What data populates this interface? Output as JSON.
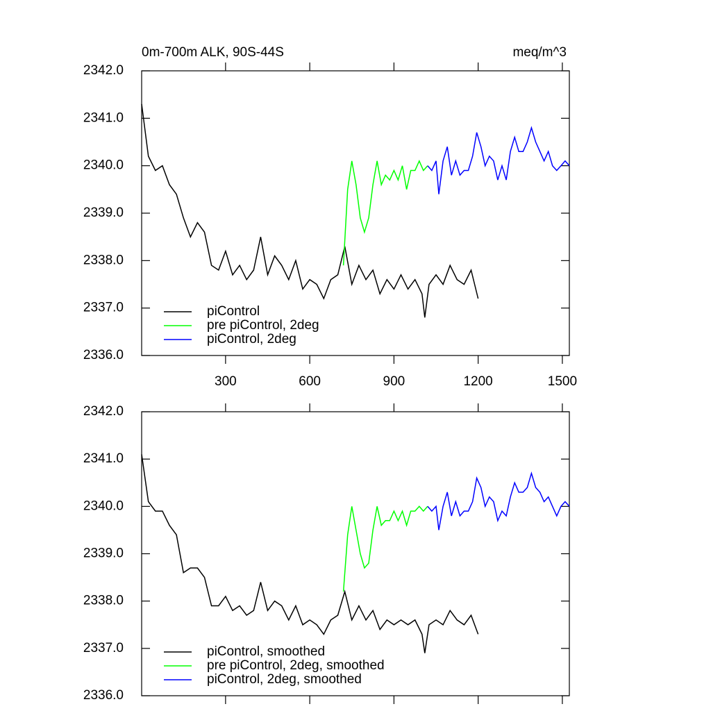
{
  "chart_data": [
    {
      "type": "line",
      "title": "0m-700m ALK, 90S-44S",
      "right_title": "meq/m^3",
      "xlim": [
        1,
        1525
      ],
      "ylim": [
        2336,
        2342
      ],
      "xticks": [
        300,
        600,
        900,
        1200,
        1500
      ],
      "yticks": [
        {
          "value": 2336,
          "label": "2336.0"
        },
        {
          "value": 2337,
          "label": "2337.0"
        },
        {
          "value": 2338,
          "label": "2338.0"
        },
        {
          "value": 2339,
          "label": "2339.0"
        },
        {
          "value": 2340,
          "label": "2340.0"
        },
        {
          "value": 2341,
          "label": "2341.0"
        },
        {
          "value": 2342,
          "label": "2342.0"
        }
      ],
      "show_xtick_labels": true,
      "legend": "lower left",
      "series": [
        {
          "name": "piControl",
          "color": "#000000",
          "x": [
            1,
            25,
            50,
            75,
            100,
            125,
            150,
            175,
            200,
            225,
            250,
            275,
            300,
            325,
            350,
            375,
            400,
            425,
            450,
            475,
            500,
            525,
            550,
            575,
            600,
            625,
            650,
            675,
            700,
            725,
            750,
            775,
            800,
            825,
            850,
            875,
            900,
            925,
            950,
            975,
            1000,
            1010,
            1025,
            1050,
            1075,
            1100,
            1125,
            1150,
            1175,
            1200
          ],
          "values": [
            2341.3,
            2340.2,
            2339.9,
            2340.0,
            2339.6,
            2339.4,
            2338.9,
            2338.5,
            2338.8,
            2338.6,
            2337.9,
            2337.8,
            2338.2,
            2337.7,
            2337.9,
            2337.6,
            2337.8,
            2338.5,
            2337.7,
            2338.1,
            2337.9,
            2337.6,
            2338.0,
            2337.4,
            2337.6,
            2337.5,
            2337.2,
            2337.6,
            2337.7,
            2338.3,
            2337.5,
            2337.9,
            2337.6,
            2337.8,
            2337.3,
            2337.6,
            2337.4,
            2337.7,
            2337.4,
            2337.6,
            2337.3,
            2336.8,
            2337.5,
            2337.7,
            2337.5,
            2337.9,
            2337.6,
            2337.5,
            2337.8,
            2337.2
          ]
        },
        {
          "name": "pre piControl, 2deg",
          "color": "#00ff00",
          "x": [
            720,
            735,
            750,
            765,
            780,
            795,
            810,
            825,
            840,
            855,
            870,
            885,
            900,
            915,
            930,
            945,
            960,
            975,
            990,
            1005,
            1020
          ],
          "values": [
            2337.9,
            2339.5,
            2340.1,
            2339.6,
            2338.9,
            2338.6,
            2338.9,
            2339.6,
            2340.1,
            2339.6,
            2339.8,
            2339.7,
            2339.9,
            2339.7,
            2340.0,
            2339.5,
            2339.9,
            2339.9,
            2340.1,
            2339.9,
            2340.0
          ]
        },
        {
          "name": "piControl, 2deg",
          "color": "#0000ff",
          "x": [
            1020,
            1035,
            1050,
            1060,
            1075,
            1090,
            1105,
            1120,
            1135,
            1150,
            1165,
            1180,
            1195,
            1210,
            1225,
            1240,
            1255,
            1270,
            1285,
            1300,
            1315,
            1330,
            1345,
            1360,
            1375,
            1390,
            1405,
            1420,
            1435,
            1450,
            1465,
            1480,
            1495,
            1510,
            1525
          ],
          "values": [
            2340.0,
            2339.9,
            2340.1,
            2339.4,
            2340.1,
            2340.4,
            2339.8,
            2340.1,
            2339.8,
            2339.9,
            2339.9,
            2340.2,
            2340.7,
            2340.4,
            2340.0,
            2340.2,
            2340.1,
            2339.7,
            2340.0,
            2339.7,
            2340.3,
            2340.6,
            2340.3,
            2340.3,
            2340.5,
            2340.8,
            2340.5,
            2340.3,
            2340.1,
            2340.3,
            2340.0,
            2339.9,
            2340.0,
            2340.1,
            2340.0
          ]
        }
      ]
    },
    {
      "type": "line",
      "xlim": [
        1,
        1525
      ],
      "ylim": [
        2336,
        2342
      ],
      "xticks": [
        300,
        600,
        900,
        1200,
        1500
      ],
      "yticks": [
        {
          "value": 2336,
          "label": "2336.0"
        },
        {
          "value": 2337,
          "label": "2337.0"
        },
        {
          "value": 2338,
          "label": "2338.0"
        },
        {
          "value": 2339,
          "label": "2339.0"
        },
        {
          "value": 2340,
          "label": "2340.0"
        },
        {
          "value": 2341,
          "label": "2341.0"
        },
        {
          "value": 2342,
          "label": "2342.0"
        }
      ],
      "show_xtick_labels": false,
      "legend": "lower left",
      "series": [
        {
          "name": "piControl, smoothed",
          "color": "#000000",
          "x": [
            1,
            25,
            50,
            75,
            100,
            125,
            150,
            175,
            200,
            225,
            250,
            275,
            300,
            325,
            350,
            375,
            400,
            425,
            450,
            475,
            500,
            525,
            550,
            575,
            600,
            625,
            650,
            675,
            700,
            725,
            750,
            775,
            800,
            825,
            850,
            875,
            900,
            925,
            950,
            975,
            1000,
            1010,
            1025,
            1050,
            1075,
            1100,
            1125,
            1150,
            1175,
            1200
          ],
          "values": [
            2341.1,
            2340.1,
            2339.9,
            2339.9,
            2339.6,
            2339.4,
            2338.6,
            2338.7,
            2338.7,
            2338.5,
            2337.9,
            2337.9,
            2338.1,
            2337.8,
            2337.9,
            2337.7,
            2337.8,
            2338.4,
            2337.8,
            2338.0,
            2337.9,
            2337.6,
            2337.9,
            2337.5,
            2337.6,
            2337.5,
            2337.3,
            2337.6,
            2337.7,
            2338.2,
            2337.6,
            2337.9,
            2337.6,
            2337.8,
            2337.4,
            2337.6,
            2337.5,
            2337.6,
            2337.5,
            2337.6,
            2337.3,
            2336.9,
            2337.5,
            2337.6,
            2337.5,
            2337.8,
            2337.6,
            2337.5,
            2337.7,
            2337.3
          ]
        },
        {
          "name": "pre piControl, 2deg, smoothed",
          "color": "#00ff00",
          "x": [
            720,
            735,
            750,
            765,
            780,
            795,
            810,
            825,
            840,
            855,
            870,
            885,
            900,
            915,
            930,
            945,
            960,
            975,
            990,
            1005,
            1020
          ],
          "values": [
            2338.2,
            2339.4,
            2340.0,
            2339.5,
            2339.0,
            2338.7,
            2338.8,
            2339.5,
            2340.0,
            2339.6,
            2339.7,
            2339.7,
            2339.9,
            2339.7,
            2339.9,
            2339.6,
            2339.9,
            2339.9,
            2340.0,
            2339.9,
            2340.0
          ]
        },
        {
          "name": "piControl, 2deg, smoothed",
          "color": "#0000ff",
          "x": [
            1020,
            1035,
            1050,
            1060,
            1075,
            1090,
            1105,
            1120,
            1135,
            1150,
            1165,
            1180,
            1195,
            1210,
            1225,
            1240,
            1255,
            1270,
            1285,
            1300,
            1315,
            1330,
            1345,
            1360,
            1375,
            1390,
            1405,
            1420,
            1435,
            1450,
            1465,
            1480,
            1495,
            1510,
            1525
          ],
          "values": [
            2340.0,
            2339.9,
            2340.0,
            2339.5,
            2340.0,
            2340.3,
            2339.8,
            2340.1,
            2339.8,
            2339.9,
            2339.9,
            2340.1,
            2340.6,
            2340.4,
            2340.0,
            2340.2,
            2340.1,
            2339.7,
            2339.9,
            2339.8,
            2340.2,
            2340.5,
            2340.3,
            2340.3,
            2340.4,
            2340.7,
            2340.4,
            2340.3,
            2340.1,
            2340.2,
            2340.0,
            2339.8,
            2340.0,
            2340.1,
            2340.0
          ]
        }
      ]
    }
  ]
}
